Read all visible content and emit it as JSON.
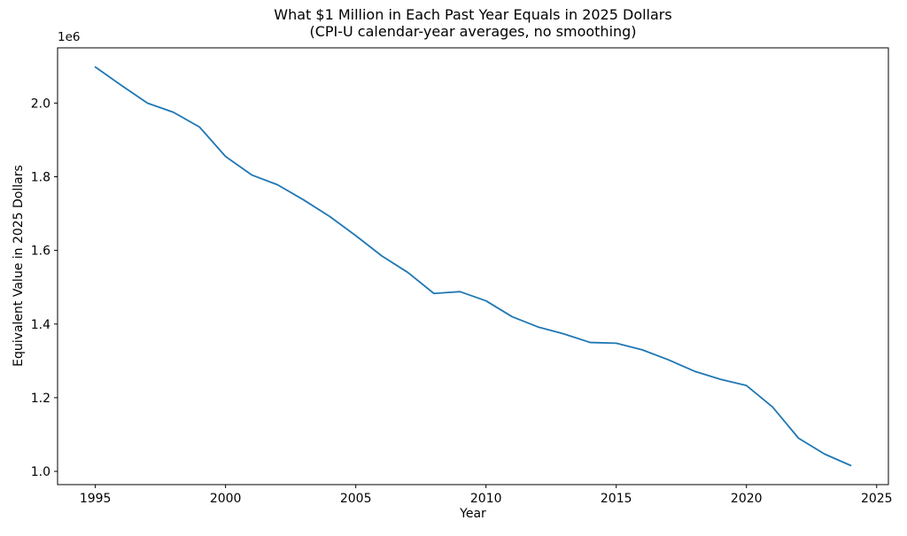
{
  "colors": {
    "background": "#ffffff",
    "text": "#000000",
    "spine": "#000000",
    "line": "#1f77b4"
  },
  "chart_data": {
    "type": "line",
    "title": "What $1 Million in Each Past Year Equals in 2025 Dollars",
    "subtitle": "(CPI-U calendar-year averages, no smoothing)",
    "xlabel": "Year",
    "ylabel": "Equivalent Value in 2025 Dollars",
    "y_offset_label": "1e6",
    "grid": false,
    "legend": "none",
    "line_color": "#1f77b4",
    "xlim": [
      1993.55,
      2025.45
    ],
    "ylim": [
      964000,
      2150000
    ],
    "xticks": [
      1995,
      2000,
      2005,
      2010,
      2015,
      2020,
      2025
    ],
    "xtick_labels": [
      "1995",
      "2000",
      "2005",
      "2010",
      "2015",
      "2020",
      "2025"
    ],
    "yticks": [
      1000000,
      1200000,
      1400000,
      1600000,
      1800000,
      2000000
    ],
    "ytick_labels": [
      "1.0",
      "1.2",
      "1.4",
      "1.6",
      "1.8",
      "2.0"
    ],
    "x": [
      1995,
      1996,
      1997,
      1998,
      1999,
      2000,
      2001,
      2002,
      2003,
      2004,
      2005,
      2006,
      2007,
      2008,
      2009,
      2010,
      2011,
      2012,
      2013,
      2014,
      2015,
      2016,
      2017,
      2018,
      2019,
      2020,
      2021,
      2022,
      2023,
      2024
    ],
    "y": [
      2098000,
      2048000,
      2000000,
      1975000,
      1935000,
      1855000,
      1805000,
      1778000,
      1737000,
      1692000,
      1640000,
      1585000,
      1540000,
      1483000,
      1488000,
      1463000,
      1420000,
      1392000,
      1373000,
      1350000,
      1348000,
      1330000,
      1303000,
      1272000,
      1250000,
      1233000,
      1175000,
      1090000,
      1047000,
      1016000
    ]
  }
}
